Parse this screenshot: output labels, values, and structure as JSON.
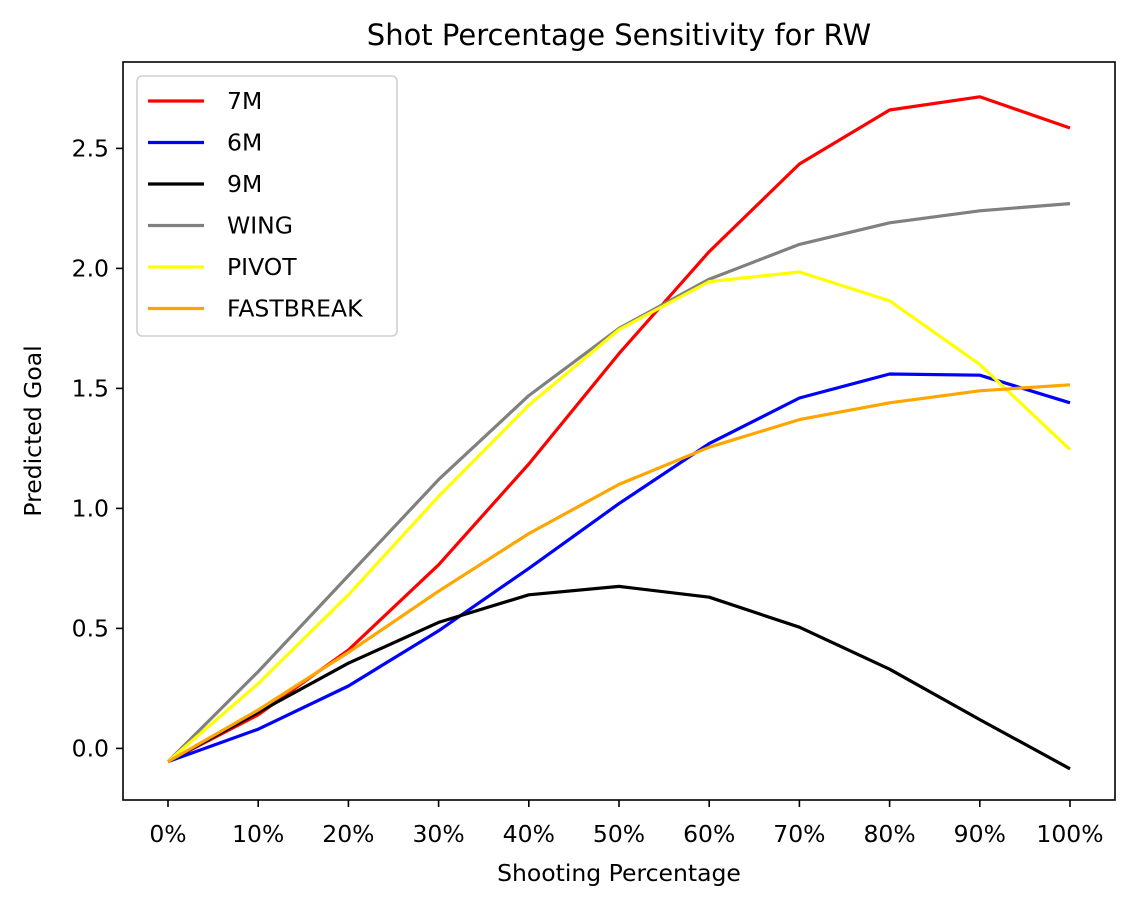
{
  "chart_data": {
    "type": "line",
    "title": "Shot Percentage Sensitivity for RW",
    "xlabel": "Shooting Percentage",
    "ylabel": "Predicted Goal",
    "categories": [
      "0%",
      "10%",
      "20%",
      "30%",
      "40%",
      "50%",
      "60%",
      "70%",
      "80%",
      "90%",
      "100%"
    ],
    "yticks": [
      0.0,
      0.5,
      1.0,
      1.5,
      2.0,
      2.5
    ],
    "ytick_labels": [
      "0.0",
      "0.5",
      "1.0",
      "1.5",
      "2.0",
      "2.5"
    ],
    "ylim": [
      -0.215,
      2.86
    ],
    "grid": false,
    "legend_position": "upper-left",
    "series": [
      {
        "name": "7M",
        "color": "#ff0000",
        "values": [
          -0.055,
          0.14,
          0.41,
          0.765,
          1.185,
          1.645,
          2.07,
          2.435,
          2.66,
          2.715,
          2.585
        ]
      },
      {
        "name": "6M",
        "color": "#0000ff",
        "values": [
          -0.055,
          0.08,
          0.26,
          0.49,
          0.75,
          1.02,
          1.27,
          1.46,
          1.56,
          1.555,
          1.44
        ]
      },
      {
        "name": "9M",
        "color": "#000000",
        "values": [
          -0.055,
          0.15,
          0.355,
          0.525,
          0.64,
          0.675,
          0.63,
          0.505,
          0.33,
          0.12,
          -0.085
        ]
      },
      {
        "name": "WING",
        "color": "#808080",
        "values": [
          -0.055,
          0.32,
          0.72,
          1.12,
          1.47,
          1.75,
          1.955,
          2.1,
          2.19,
          2.24,
          2.27
        ]
      },
      {
        "name": "PIVOT",
        "color": "#ffff00",
        "values": [
          -0.055,
          0.27,
          0.64,
          1.05,
          1.43,
          1.745,
          1.945,
          1.985,
          1.865,
          1.6,
          1.245
        ]
      },
      {
        "name": "FASTBREAK",
        "color": "#ffa500",
        "values": [
          -0.055,
          0.16,
          0.4,
          0.655,
          0.895,
          1.1,
          1.255,
          1.37,
          1.44,
          1.49,
          1.515
        ]
      }
    ]
  }
}
